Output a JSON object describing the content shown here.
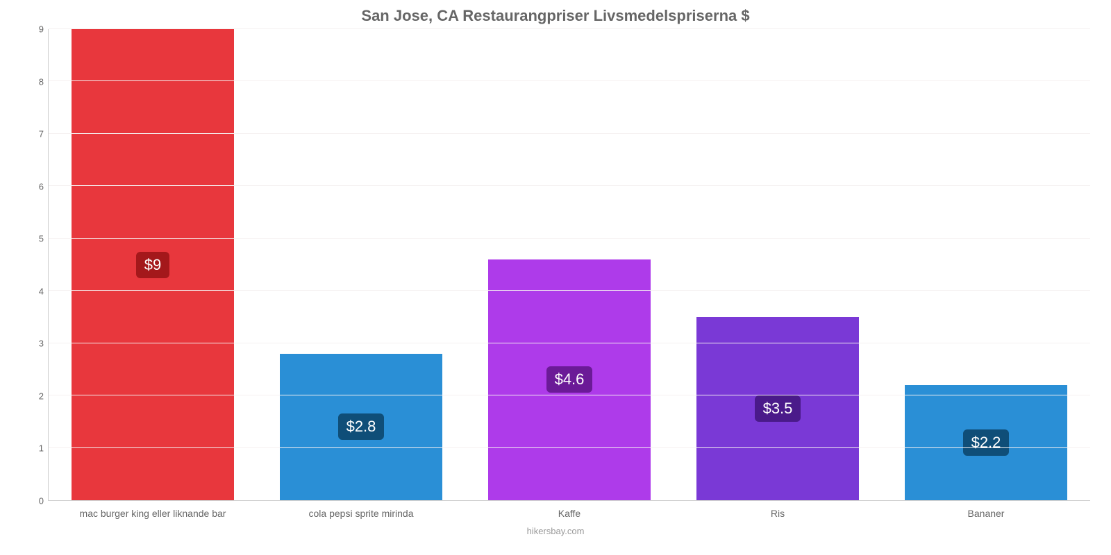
{
  "chart": {
    "type": "bar",
    "title": "San Jose, CA Restaurangpriser Livsmedelspriserna $",
    "title_fontsize": 22,
    "title_color": "#666666",
    "attribution": "hikersbay.com",
    "background_color": "#ffffff",
    "grid_color": "#f5f1f1",
    "axis_line_color": "#d0d0d0",
    "label_color": "#666666",
    "label_fontsize": 14,
    "ylim": [
      0,
      9
    ],
    "ytick_step": 1,
    "yticks": [
      0,
      1,
      2,
      3,
      4,
      5,
      6,
      7,
      8,
      9
    ],
    "bar_width": 0.78,
    "value_label_fontsize": 22,
    "value_label_color": "#ffffff",
    "categories": [
      "mac burger king eller liknande bar",
      "cola pepsi sprite mirinda",
      "Kaffe",
      "Ris",
      "Bananer"
    ],
    "series": [
      {
        "value": 9.0,
        "display": "$9",
        "bar_color": "#e8373d",
        "badge_color": "#a4181b"
      },
      {
        "value": 2.8,
        "display": "$2.8",
        "bar_color": "#2a8fd6",
        "badge_color": "#0f4e78"
      },
      {
        "value": 4.6,
        "display": "$4.6",
        "bar_color": "#ae3bea",
        "badge_color": "#6b1a97"
      },
      {
        "value": 3.5,
        "display": "$3.5",
        "bar_color": "#7a39d6",
        "badge_color": "#4a1a8a"
      },
      {
        "value": 2.2,
        "display": "$2.2",
        "bar_color": "#2a8fd6",
        "badge_color": "#0f4e78"
      }
    ]
  }
}
